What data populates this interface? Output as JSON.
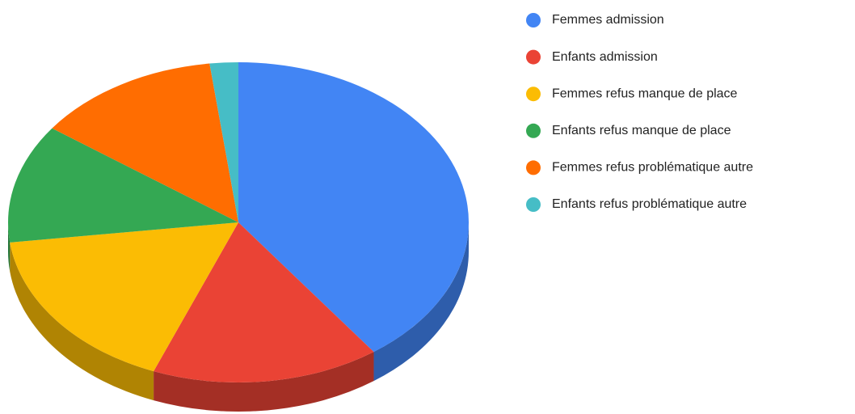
{
  "chart_data": {
    "type": "pie3d",
    "categories": [
      "Femmes admission",
      "Enfants admission",
      "Femmes refus manque de place",
      "Enfants refus manque de place",
      "Femmes refus problématique autre",
      "Enfants refus problématique autre"
    ],
    "values": [
      40,
      16,
      17,
      12,
      13,
      2
    ],
    "colors": [
      "#4285f4",
      "#ea4335",
      "#fbbc04",
      "#34a853",
      "#ff6d01",
      "#46bdc6"
    ],
    "legend": "right"
  }
}
